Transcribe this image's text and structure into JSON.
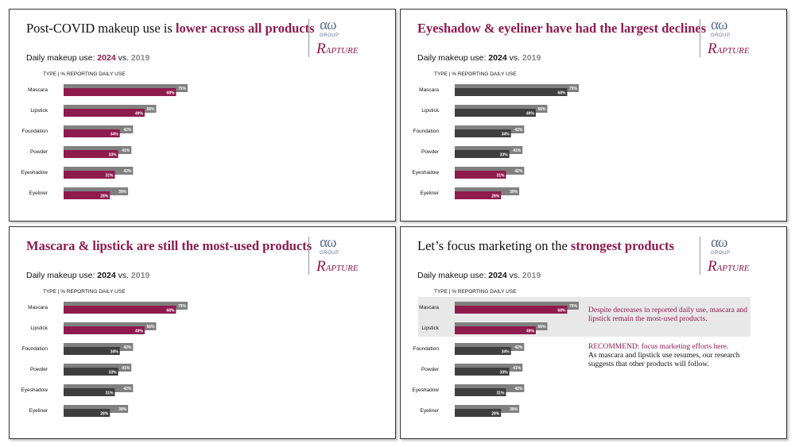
{
  "colors": {
    "highlight": "#8e1a4e",
    "dark": "#3e3e3e",
    "prior": "#808080"
  },
  "logo": {
    "aw": "αω",
    "group": "GROUP",
    "rapture_cap": "R",
    "rapture_rest": "APTURE"
  },
  "common": {
    "subtitle_pre": "Daily makeup use: ",
    "subtitle_2024": "2024",
    "subtitle_vs": " vs. ",
    "subtitle_2019": "2019",
    "col_head": "TYPE  |  % REPORTING DAILY USE"
  },
  "panels": [
    {
      "title_pre": "Post-COVID makeup use is ",
      "title_hl": "lower across all products",
      "title_full": ""
    },
    {
      "title_pre": "",
      "title_hl": "",
      "title_full": "Eyeshadow & eyeliner have had the largest declines"
    },
    {
      "title_pre": "",
      "title_hl": "",
      "title_full": "Mascara & lipstick are still the most-used products"
    },
    {
      "title_pre": "Let’s focus marketing on the ",
      "title_hl": "strongest products",
      "title_full": ""
    }
  ],
  "notes": {
    "a": "Despite decreases in reported daily use, mascara and lipstick remain the most-used products.",
    "b_rec": "RECOMMEND: focus marketing efforts here.",
    "b_rest": "As mascara and lipstick use resumes, our research suggests that other products will follow."
  },
  "chart_data": [
    {
      "type": "bar",
      "categories": [
        "Mascara",
        "Lipstick",
        "Foundation",
        "Powder",
        "Eyeshadow",
        "Eyeliner"
      ],
      "series": [
        {
          "name": "2024",
          "values": [
            68,
            49,
            34,
            33,
            31,
            28
          ]
        },
        {
          "name": "2019",
          "values": [
            75,
            56,
            42,
            41,
            42,
            39
          ]
        }
      ],
      "highlight": [
        0,
        1,
        2,
        3,
        4,
        5
      ]
    },
    {
      "type": "bar",
      "categories": [
        "Mascara",
        "Lipstick",
        "Foundation",
        "Powder",
        "Eyeshadow",
        "Eyeliner"
      ],
      "series": [
        {
          "name": "2024",
          "values": [
            68,
            49,
            34,
            33,
            31,
            28
          ]
        },
        {
          "name": "2019",
          "values": [
            75,
            56,
            42,
            41,
            42,
            39
          ]
        }
      ],
      "highlight": [
        4,
        5
      ]
    },
    {
      "type": "bar",
      "categories": [
        "Mascara",
        "Lipstick",
        "Foundation",
        "Powder",
        "Eyeshadow",
        "Eyeliner"
      ],
      "series": [
        {
          "name": "2024",
          "values": [
            68,
            49,
            34,
            33,
            31,
            28
          ]
        },
        {
          "name": "2019",
          "values": [
            75,
            56,
            42,
            41,
            42,
            39
          ]
        }
      ],
      "highlight": [
        0,
        1
      ]
    },
    {
      "type": "bar",
      "categories": [
        "Mascara",
        "Lipstick",
        "Foundation",
        "Powder",
        "Eyeshadow",
        "Eyeliner"
      ],
      "series": [
        {
          "name": "2024",
          "values": [
            68,
            49,
            34,
            33,
            31,
            28
          ]
        },
        {
          "name": "2019",
          "values": [
            75,
            56,
            42,
            41,
            42,
            39
          ]
        }
      ],
      "highlight": [
        0,
        1
      ]
    }
  ]
}
